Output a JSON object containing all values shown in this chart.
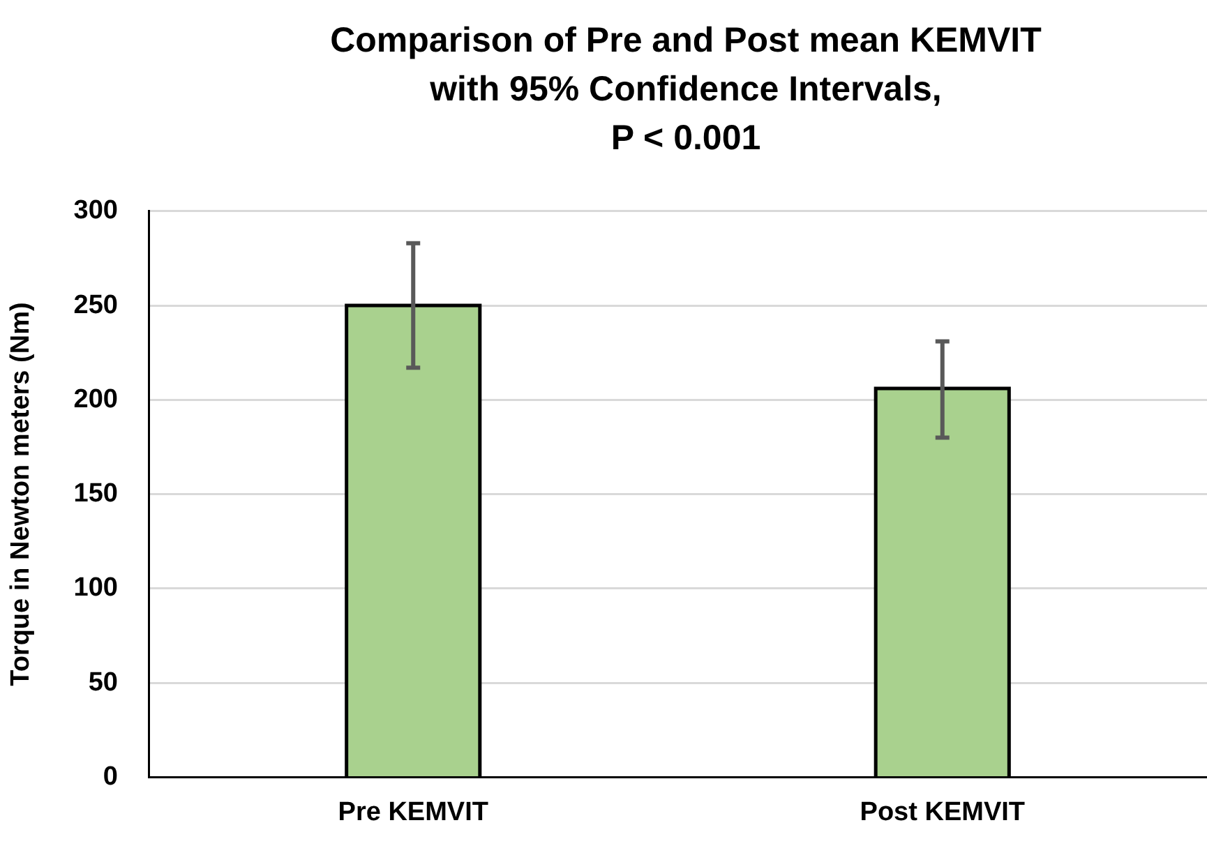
{
  "chart_data": {
    "type": "bar",
    "title": "Comparison of Pre and Post mean KEMVIT\nwith 95% Confidence Intervals,\nP < 0.001",
    "ylabel": "Torque in Newton meters (Nm)",
    "categories": [
      "Pre KEMVIT",
      "Post KEMVIT"
    ],
    "values": [
      250,
      206
    ],
    "color": "#a9d18e",
    "errors": [
      [
        217,
        283
      ],
      [
        180,
        231
      ]
    ],
    "ylim": [
      0,
      300
    ],
    "yticks": [
      0,
      50,
      100,
      150,
      200,
      250,
      300
    ],
    "grid": "y",
    "legend": false
  }
}
